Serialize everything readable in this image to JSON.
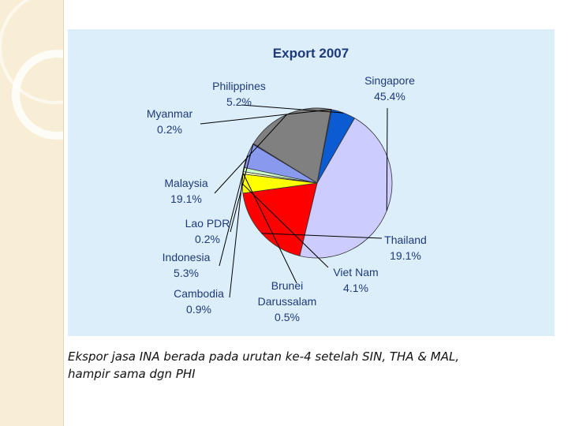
{
  "chart_data": {
    "type": "pie",
    "title": "Export 2007",
    "slices": [
      {
        "name": "Singapore",
        "value": 45.4,
        "label": "45.4%",
        "color": "#ccccff"
      },
      {
        "name": "Thailand",
        "value": 19.1,
        "label": "19.1%",
        "color": "#ff0000"
      },
      {
        "name": "Viet Nam",
        "value": 4.1,
        "label": "4.1%",
        "color": "#ffff00"
      },
      {
        "name": "Brunei Darussalam",
        "value": 0.5,
        "label": "0.5%",
        "color": "#ffffcc"
      },
      {
        "name": "Cambodia",
        "value": 0.9,
        "label": "0.9%",
        "color": "#ccffcc"
      },
      {
        "name": "Indonesia",
        "value": 5.3,
        "label": "5.3%",
        "color": "#8899ee"
      },
      {
        "name": "Lao PDR",
        "value": 0.2,
        "label": "0.2%",
        "color": "#1a237e"
      },
      {
        "name": "Malaysia",
        "value": 19.1,
        "label": "19.1%",
        "color": "#808080"
      },
      {
        "name": "Myanmar",
        "value": 0.2,
        "label": "0.2%",
        "color": "#333399"
      },
      {
        "name": "Philippines",
        "value": 5.2,
        "label": "5.2%",
        "color": "#0b5bd3"
      }
    ]
  },
  "caption": {
    "line1": "Ekspor jasa INA berada pada urutan ke-4 setelah SIN, THA & MAL,",
    "line2": "hampir sama dgn PHI"
  }
}
